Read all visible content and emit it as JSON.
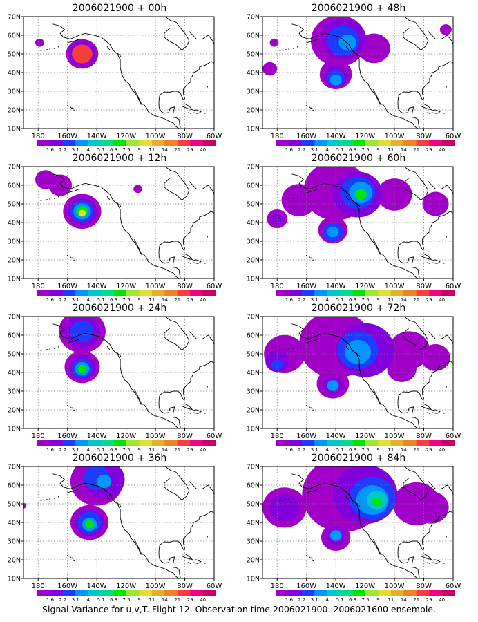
{
  "panels": [
    {
      "title": "2006021900 + 00h",
      "forecast_hour": 0
    },
    {
      "title": "2006021900 + 48h",
      "forecast_hour": 48
    },
    {
      "title": "2006021900 + 12h",
      "forecast_hour": 12
    },
    {
      "title": "2006021900 + 60h",
      "forecast_hour": 60
    },
    {
      "title": "2006021900 + 24h",
      "forecast_hour": 24
    },
    {
      "title": "2006021900 + 72h",
      "forecast_hour": 72
    },
    {
      "title": "2006021900 + 36h",
      "forecast_hour": 36
    },
    {
      "title": "2006021900 + 84h",
      "forecast_hour": 84
    }
  ],
  "lat_labels": [
    "70N",
    "60N",
    "50N",
    "40N",
    "30N",
    "20N",
    "10N"
  ],
  "lon_labels": [
    "180",
    "160W",
    "140W",
    "120W",
    "100W",
    "80W",
    "60W"
  ],
  "colorbar": {
    "labels": [
      "1.6",
      "2.2",
      "3.1",
      "4",
      "5.1",
      "6.3",
      "7.5",
      "9",
      "11",
      "14",
      "21",
      "29",
      "40"
    ],
    "colors": [
      "#a000c8",
      "#8200dc",
      "#1e3cff",
      "#0096ff",
      "#00c8c8",
      "#00dc8c",
      "#00e600",
      "#a0e632",
      "#e6dc32",
      "#e6af2d",
      "#f08228",
      "#fa3c3c",
      "#f00082",
      "#c80064"
    ]
  },
  "footer": "Signal Variance for u,v,T. Flight 12. Observation time 2006021900. 2006021600 ensemble.",
  "blob_colors": [
    "#a000c8",
    "#8200dc",
    "#1e3cff",
    "#0096ff",
    "#00c8c8",
    "#00dc8c",
    "#00e600",
    "#a0e632",
    "#e6dc32",
    "#f08228",
    "#fa3c3c"
  ]
}
